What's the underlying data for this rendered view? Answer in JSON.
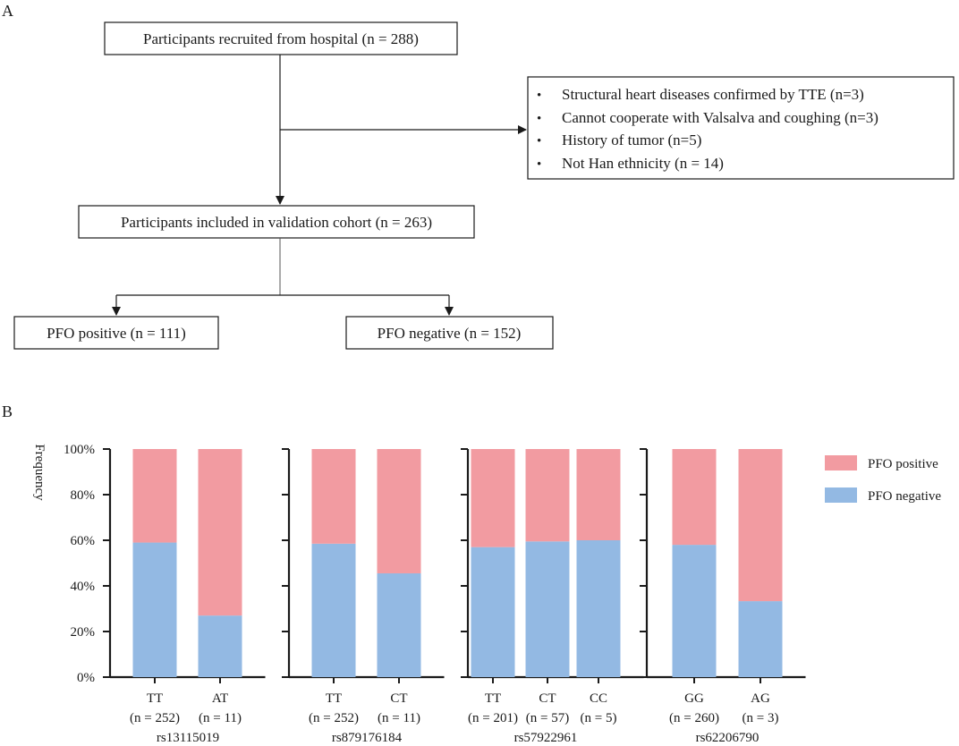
{
  "panel_a": {
    "label": "A",
    "recruited": "Participants recruited from hospital (n = 288)",
    "exclusions": [
      "Structural heart diseases confirmed by TTE (n=3)",
      "Cannot cooperate with Valsalva and coughing (n=3)",
      "History of tumor (n=5)",
      "Not Han ethnicity (n = 14)"
    ],
    "bullet": "•",
    "included": "Participants included in validation cohort (n = 263)",
    "positive": "PFO positive (n = 111)",
    "negative": "PFO negative (n = 152)"
  },
  "panel_b": {
    "label": "B",
    "ylabel": "Frequency"
  },
  "chart_data": {
    "type": "bar",
    "stacked": true,
    "percent": true,
    "ylabel": "Frequency",
    "yticks": [
      "0%",
      "20%",
      "40%",
      "60%",
      "80%",
      "100%"
    ],
    "ylim": [
      0,
      100
    ],
    "legend": [
      {
        "name": "PFO positive",
        "color": "#f29ba1"
      },
      {
        "name": "PFO negative",
        "color": "#93b9e3"
      }
    ],
    "legend_position": "right",
    "groups": [
      {
        "snp": "rs13115019",
        "bars": [
          {
            "genotype": "TT",
            "n": "(n = 252)",
            "negative": 59,
            "positive": 41
          },
          {
            "genotype": "AT",
            "n": "(n = 11)",
            "negative": 27,
            "positive": 73
          }
        ]
      },
      {
        "snp": "rs879176184",
        "bars": [
          {
            "genotype": "TT",
            "n": "(n = 252)",
            "negative": 58.5,
            "positive": 41.5
          },
          {
            "genotype": "CT",
            "n": "(n = 11)",
            "negative": 45.5,
            "positive": 54.5
          }
        ]
      },
      {
        "snp": "rs57922961",
        "bars": [
          {
            "genotype": "TT",
            "n": "(n = 201)",
            "negative": 57,
            "positive": 43
          },
          {
            "genotype": "CT",
            "n": "(n = 57)",
            "negative": 59.5,
            "positive": 40.5
          },
          {
            "genotype": "CC",
            "n": "(n = 5)",
            "negative": 60,
            "positive": 40
          }
        ]
      },
      {
        "snp": "rs62206790",
        "bars": [
          {
            "genotype": "GG",
            "n": "(n = 260)",
            "negative": 58,
            "positive": 42
          },
          {
            "genotype": "AG",
            "n": "(n = 3)",
            "negative": 33.3,
            "positive": 66.7
          }
        ]
      }
    ]
  }
}
